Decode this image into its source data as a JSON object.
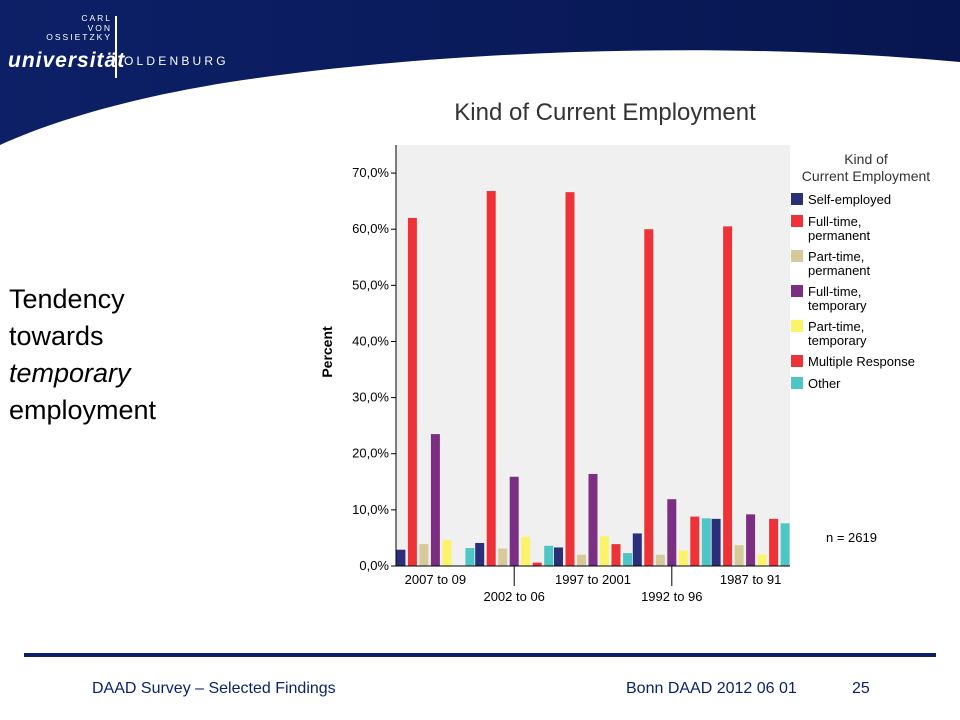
{
  "header": {
    "logo_line1": "CARL",
    "logo_line2": "VON",
    "logo_line3": "OSSIETZKY",
    "logo_main": "universität",
    "logo_city": "OLDENBURG"
  },
  "side_text": {
    "line1": "Tendency",
    "line2": "towards",
    "line3": "temporary",
    "line4": "employment"
  },
  "chart_data": {
    "type": "bar",
    "title": "Kind of Current Employment",
    "ylabel": "Percent",
    "ylim": [
      0,
      75
    ],
    "y_ticks": [
      0,
      10,
      20,
      30,
      40,
      50,
      60,
      70
    ],
    "y_tick_labels": [
      "0,0%",
      "10,0%",
      "20,0%",
      "30,0%",
      "40,0%",
      "50,0%",
      "60,0%",
      "70,0%"
    ],
    "categories": [
      "2007 to 09",
      "2002 to 06",
      "1997 to 2001",
      "1992 to 96",
      "1987 to 91"
    ],
    "legend_title": "Kind of Current Employment",
    "legend_position": "right",
    "annotation": "n = 2619",
    "series": [
      {
        "name": "Self-employed",
        "color": "#2a2f7a",
        "values": [
          2.9,
          4.1,
          3.3,
          5.8,
          8.4
        ]
      },
      {
        "name": "Full-time, permanent",
        "color": "#ee3338",
        "values": [
          62.0,
          66.8,
          66.6,
          60.0,
          60.5
        ]
      },
      {
        "name": "Part-time, permanent",
        "color": "#d6c99a",
        "values": [
          3.9,
          3.1,
          2.0,
          2.0,
          3.7
        ]
      },
      {
        "name": "Full-time, temporary",
        "color": "#7a2f82",
        "values": [
          23.5,
          15.9,
          16.4,
          11.9,
          9.2
        ]
      },
      {
        "name": "Part-time, temporary",
        "color": "#fbf46b",
        "values": [
          4.6,
          5.2,
          5.3,
          2.8,
          2.0
        ]
      },
      {
        "name": "Multiple Response",
        "color": "#ee3338",
        "values": [
          0.0,
          0.6,
          3.9,
          8.8,
          8.4
        ]
      },
      {
        "name": "Other",
        "color": "#4fc6c6",
        "values": [
          3.2,
          3.6,
          2.3,
          8.5,
          7.6
        ]
      }
    ]
  },
  "footer": {
    "left": "DAAD Survey – Selected Findings",
    "mid": "Bonn DAAD 2012 06 01",
    "page": "25"
  }
}
